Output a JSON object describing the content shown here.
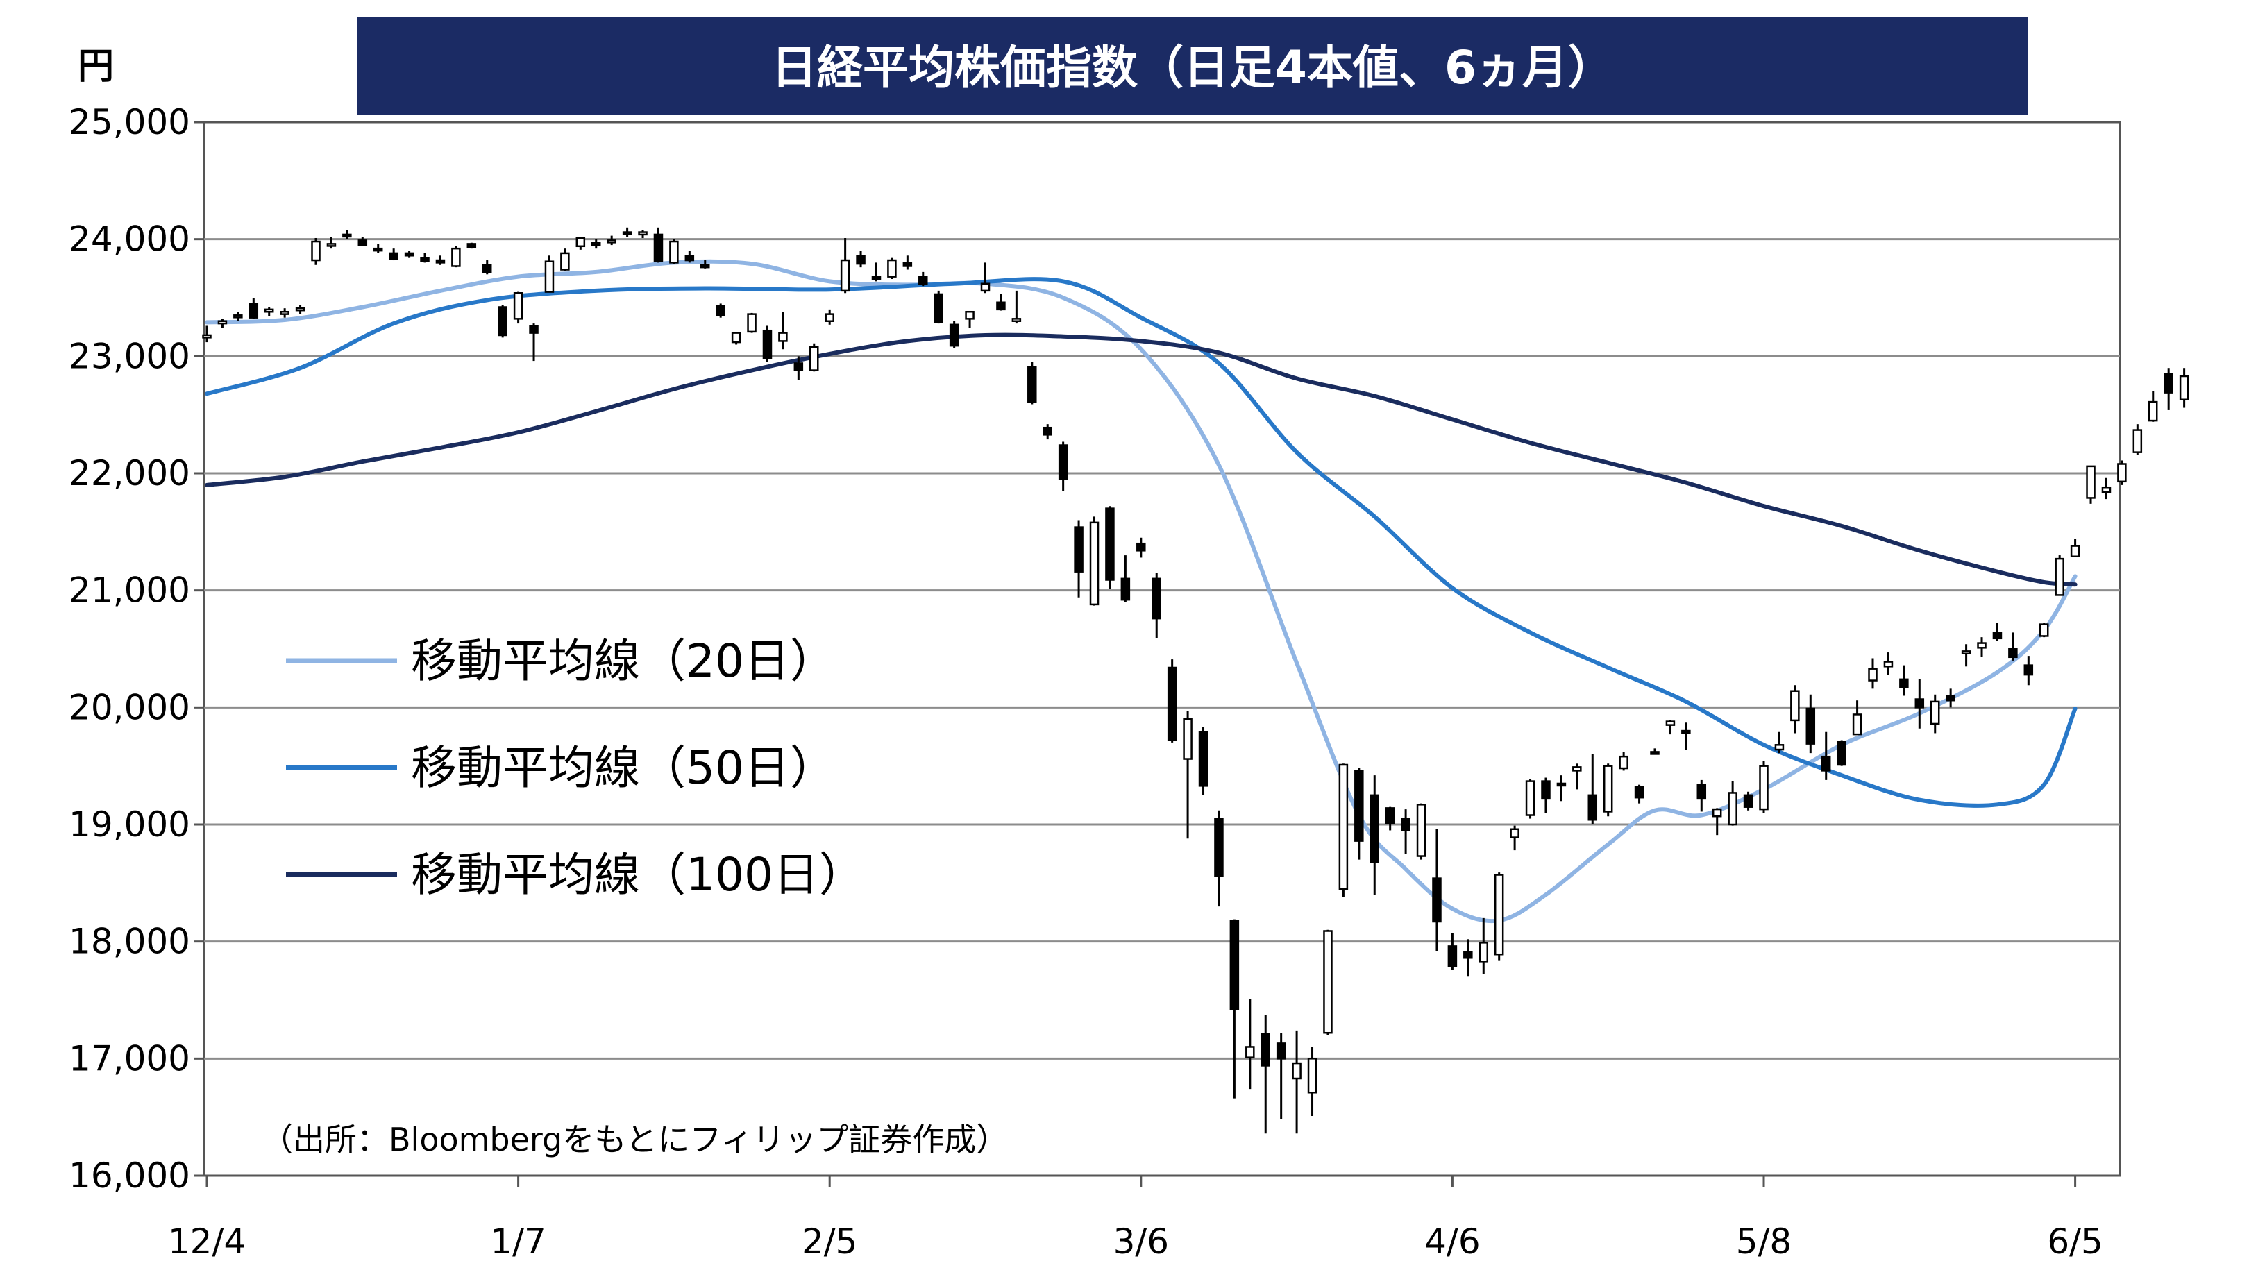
{
  "chart_data": {
    "type": "candlestick",
    "title": "日経平均株価指数（日足4本値、6ヵ月）",
    "ylabel": "円",
    "source_note": "（出所：Bloombergをもとにフィリップ証券作成）",
    "ylim": [
      16000,
      25000
    ],
    "y_ticks": [
      "16,000",
      "17,000",
      "18,000",
      "19,000",
      "20,000",
      "21,000",
      "22,000",
      "23,000",
      "24,000",
      "25,000"
    ],
    "y_tick_values": [
      16000,
      17000,
      18000,
      19000,
      20000,
      21000,
      22000,
      23000,
      24000,
      25000
    ],
    "x_ticks": [
      "12/4",
      "1/7",
      "2/5",
      "3/6",
      "4/6",
      "5/8",
      "6/5"
    ],
    "x_tick_index": [
      0,
      20,
      40,
      60,
      80,
      100,
      120
    ],
    "grid": true,
    "legend_position": "left-middle",
    "series": [
      {
        "name": "移動平均線（20日）",
        "color": "#8fb4e3",
        "values": [
          [
            0,
            23290
          ],
          [
            5,
            23310
          ],
          [
            10,
            23420
          ],
          [
            15,
            23560
          ],
          [
            20,
            23680
          ],
          [
            25,
            23720
          ],
          [
            30,
            23800
          ],
          [
            35,
            23790
          ],
          [
            40,
            23640
          ],
          [
            45,
            23610
          ],
          [
            50,
            23620
          ],
          [
            55,
            23500
          ],
          [
            60,
            23060
          ],
          [
            65,
            22070
          ],
          [
            70,
            20380
          ],
          [
            74,
            19080
          ],
          [
            77,
            18620
          ],
          [
            80,
            18280
          ],
          [
            83,
            18180
          ],
          [
            86,
            18400
          ],
          [
            90,
            18830
          ],
          [
            93,
            19120
          ],
          [
            96,
            19080
          ],
          [
            100,
            19300
          ],
          [
            105,
            19680
          ],
          [
            110,
            19950
          ],
          [
            115,
            20300
          ],
          [
            118,
            20660
          ],
          [
            120,
            21120
          ]
        ]
      },
      {
        "name": "移動平均線（50日）",
        "color": "#2878c8",
        "values": [
          [
            0,
            22680
          ],
          [
            6,
            22900
          ],
          [
            12,
            23280
          ],
          [
            18,
            23480
          ],
          [
            25,
            23560
          ],
          [
            32,
            23580
          ],
          [
            40,
            23570
          ],
          [
            48,
            23620
          ],
          [
            55,
            23640
          ],
          [
            60,
            23330
          ],
          [
            65,
            22940
          ],
          [
            70,
            22180
          ],
          [
            75,
            21630
          ],
          [
            80,
            21020
          ],
          [
            85,
            20640
          ],
          [
            90,
            20340
          ],
          [
            95,
            20050
          ],
          [
            100,
            19680
          ],
          [
            105,
            19420
          ],
          [
            110,
            19210
          ],
          [
            115,
            19170
          ],
          [
            118,
            19340
          ],
          [
            120,
            19990
          ]
        ]
      },
      {
        "name": "移動平均線（100日）",
        "color": "#1a2c5e",
        "values": [
          [
            0,
            21900
          ],
          [
            5,
            21970
          ],
          [
            10,
            22100
          ],
          [
            15,
            22220
          ],
          [
            20,
            22350
          ],
          [
            25,
            22530
          ],
          [
            30,
            22720
          ],
          [
            35,
            22880
          ],
          [
            40,
            23020
          ],
          [
            45,
            23130
          ],
          [
            50,
            23180
          ],
          [
            55,
            23170
          ],
          [
            60,
            23130
          ],
          [
            65,
            23030
          ],
          [
            70,
            22810
          ],
          [
            75,
            22660
          ],
          [
            80,
            22460
          ],
          [
            85,
            22260
          ],
          [
            90,
            22090
          ],
          [
            95,
            21920
          ],
          [
            100,
            21720
          ],
          [
            105,
            21550
          ],
          [
            110,
            21340
          ],
          [
            115,
            21160
          ],
          [
            118,
            21070
          ],
          [
            120,
            21050
          ]
        ]
      }
    ],
    "ohlc": [
      [
        23160,
        23260,
        23120,
        23180
      ],
      [
        23280,
        23320,
        23240,
        23300
      ],
      [
        23340,
        23380,
        23300,
        23350
      ],
      [
        23450,
        23500,
        23320,
        23330
      ],
      [
        23380,
        23420,
        23340,
        23400
      ],
      [
        23360,
        23410,
        23330,
        23380
      ],
      [
        23400,
        23440,
        23360,
        23410
      ],
      [
        23820,
        24010,
        23780,
        23980
      ],
      [
        23950,
        24020,
        23920,
        23960
      ],
      [
        24040,
        24080,
        24000,
        24030
      ],
      [
        23990,
        24020,
        23940,
        23950
      ],
      [
        23920,
        23960,
        23880,
        23910
      ],
      [
        23880,
        23920,
        23820,
        23830
      ],
      [
        23880,
        23900,
        23840,
        23860
      ],
      [
        23840,
        23880,
        23800,
        23810
      ],
      [
        23820,
        23860,
        23780,
        23800
      ],
      [
        23770,
        23940,
        23760,
        23920
      ],
      [
        23960,
        23970,
        23920,
        23930
      ],
      [
        23780,
        23820,
        23700,
        23720
      ],
      [
        23420,
        23440,
        23160,
        23180
      ],
      [
        23320,
        23550,
        23280,
        23540
      ],
      [
        23260,
        23280,
        22960,
        23200
      ],
      [
        23550,
        23860,
        23550,
        23810
      ],
      [
        23740,
        23920,
        23730,
        23880
      ],
      [
        23940,
        24020,
        23910,
        24010
      ],
      [
        23950,
        24000,
        23920,
        23970
      ],
      [
        23980,
        24030,
        23950,
        23990
      ],
      [
        24060,
        24100,
        24020,
        24050
      ],
      [
        24040,
        24080,
        24010,
        24060
      ],
      [
        24040,
        24100,
        23800,
        23810
      ],
      [
        23800,
        24000,
        23790,
        23980
      ],
      [
        23860,
        23900,
        23800,
        23820
      ],
      [
        23780,
        23820,
        23750,
        23760
      ],
      [
        23430,
        23450,
        23330,
        23350
      ],
      [
        23120,
        23200,
        23100,
        23200
      ],
      [
        23210,
        23370,
        23200,
        23360
      ],
      [
        23220,
        23260,
        22950,
        22980
      ],
      [
        23130,
        23380,
        23060,
        23200
      ],
      [
        22940,
        23000,
        22800,
        22880
      ],
      [
        22880,
        23110,
        22870,
        23080
      ],
      [
        23300,
        23400,
        23270,
        23360
      ],
      [
        23560,
        24010,
        23540,
        23820
      ],
      [
        23860,
        23900,
        23760,
        23790
      ],
      [
        23680,
        23800,
        23640,
        23660
      ],
      [
        23680,
        23840,
        23660,
        23820
      ],
      [
        23800,
        23860,
        23740,
        23770
      ],
      [
        23680,
        23720,
        23600,
        23620
      ],
      [
        23530,
        23560,
        23280,
        23290
      ],
      [
        23270,
        23300,
        23070,
        23090
      ],
      [
        23320,
        23340,
        23240,
        23380
      ],
      [
        23560,
        23800,
        23540,
        23620
      ],
      [
        23460,
        23530,
        23390,
        23400
      ],
      [
        23300,
        23560,
        23280,
        23320
      ],
      [
        22910,
        22950,
        22590,
        22610
      ],
      [
        22390,
        22420,
        22290,
        22330
      ],
      [
        22240,
        22270,
        21850,
        21950
      ],
      [
        21540,
        21600,
        20940,
        21160
      ],
      [
        20880,
        21630,
        20870,
        21580
      ],
      [
        21700,
        21720,
        21010,
        21090
      ],
      [
        21100,
        21300,
        20900,
        20920
      ],
      [
        21400,
        21450,
        21280,
        21340
      ],
      [
        21100,
        21150,
        20590,
        20760
      ],
      [
        20340,
        20410,
        19700,
        19720
      ],
      [
        19560,
        19970,
        18880,
        19900
      ],
      [
        19790,
        19830,
        19250,
        19330
      ],
      [
        19050,
        19120,
        18300,
        18560
      ],
      [
        18180,
        18190,
        16660,
        17420
      ],
      [
        17010,
        17510,
        16740,
        17100
      ],
      [
        17210,
        17370,
        16360,
        16940
      ],
      [
        17130,
        17220,
        16480,
        17000
      ],
      [
        16830,
        17240,
        16360,
        16960
      ],
      [
        16710,
        17100,
        16510,
        17000
      ],
      [
        17220,
        18100,
        17200,
        18090
      ],
      [
        18450,
        19520,
        18380,
        19510
      ],
      [
        19460,
        19480,
        18700,
        18860
      ],
      [
        19250,
        19420,
        18400,
        18680
      ],
      [
        19140,
        19150,
        18950,
        19010
      ],
      [
        19050,
        19130,
        18750,
        18950
      ],
      [
        18730,
        19180,
        18700,
        19170
      ],
      [
        18540,
        18960,
        17920,
        18170
      ],
      [
        17960,
        18070,
        17760,
        17790
      ],
      [
        17910,
        18020,
        17700,
        17860
      ],
      [
        17830,
        18200,
        17720,
        17990
      ],
      [
        17890,
        18590,
        17840,
        18570
      ],
      [
        18890,
        18990,
        18780,
        18960
      ],
      [
        19080,
        19390,
        19050,
        19370
      ],
      [
        19370,
        19400,
        19100,
        19220
      ],
      [
        19350,
        19420,
        19200,
        19340
      ],
      [
        19460,
        19520,
        19300,
        19490
      ],
      [
        19250,
        19600,
        19000,
        19040
      ],
      [
        19110,
        19520,
        19070,
        19500
      ],
      [
        19480,
        19620,
        19460,
        19580
      ],
      [
        19320,
        19340,
        19180,
        19230
      ],
      [
        19620,
        19650,
        19600,
        19610
      ],
      [
        19850,
        19890,
        19770,
        19880
      ],
      [
        19800,
        19870,
        19640,
        19790
      ],
      [
        19340,
        19380,
        19110,
        19220
      ],
      [
        19070,
        19140,
        18910,
        19130
      ],
      [
        19000,
        19370,
        18990,
        19270
      ],
      [
        19250,
        19280,
        19120,
        19150
      ],
      [
        19130,
        19540,
        19100,
        19500
      ],
      [
        19640,
        19790,
        19610,
        19680
      ],
      [
        19890,
        20190,
        19780,
        20140
      ],
      [
        19990,
        20110,
        19610,
        19690
      ],
      [
        19580,
        19790,
        19380,
        19460
      ],
      [
        19710,
        19720,
        19500,
        19510
      ],
      [
        19770,
        20060,
        19770,
        19940
      ],
      [
        20230,
        20420,
        20160,
        20330
      ],
      [
        20350,
        20470,
        20280,
        20390
      ],
      [
        20240,
        20360,
        20100,
        20170
      ],
      [
        20070,
        20240,
        19820,
        20000
      ],
      [
        19860,
        20110,
        19780,
        20050
      ],
      [
        20100,
        20160,
        20000,
        20060
      ],
      [
        20460,
        20540,
        20350,
        20480
      ],
      [
        20510,
        20600,
        20430,
        20550
      ],
      [
        20640,
        20720,
        20570,
        20590
      ],
      [
        20500,
        20640,
        20400,
        20430
      ],
      [
        20360,
        20440,
        20190,
        20280
      ],
      [
        20610,
        20720,
        20600,
        20710
      ],
      [
        20960,
        21300,
        20960,
        21270
      ],
      [
        21290,
        21440,
        21290,
        21380
      ],
      [
        21790,
        22060,
        21740,
        22060
      ],
      [
        21840,
        21960,
        21780,
        21880
      ],
      [
        21930,
        22110,
        21900,
        22080
      ],
      [
        22180,
        22420,
        22160,
        22370
      ],
      [
        22450,
        22700,
        22440,
        22610
      ],
      [
        22850,
        22900,
        22540,
        22690
      ],
      [
        22630,
        22900,
        22560,
        22830
      ]
    ]
  }
}
